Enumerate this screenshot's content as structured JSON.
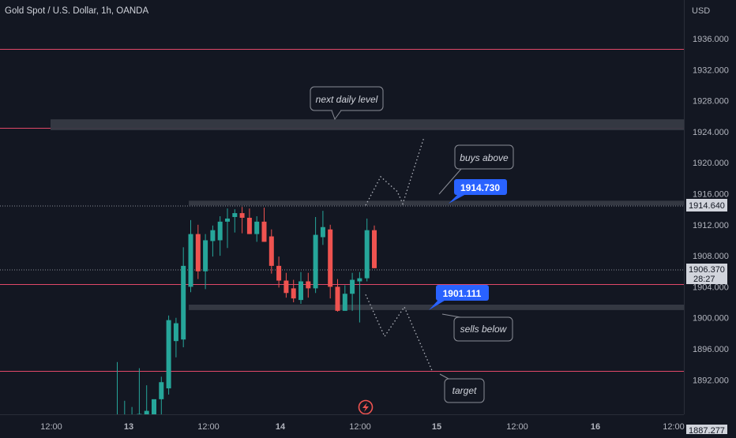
{
  "header": {
    "title": "Gold Spot / U.S. Dollar, 1h, OANDA"
  },
  "axis": {
    "currency": "USD",
    "y_ticks": [
      "1936.000",
      "1932.000",
      "1928.000",
      "1924.000",
      "1920.000",
      "1916.000",
      "1912.000",
      "1908.000",
      "1904.000",
      "1900.000",
      "1896.000",
      "1892.000"
    ],
    "x_ticks": [
      "12:00",
      "13",
      "12:00",
      "14",
      "12:00",
      "15",
      "12:00",
      "16",
      "12:00"
    ]
  },
  "price_labels": {
    "level_tag": "1914.640",
    "last_price": "1906.370",
    "countdown": "28:27",
    "bottom_price": "1887.277"
  },
  "annotations": {
    "next_daily_level": "next daily level",
    "buys_above": "buys above",
    "sells_below": "sells below",
    "target": "target",
    "buy_level_tag": "1914.730",
    "sell_level_tag": "1901.111"
  },
  "colors": {
    "background": "#131722",
    "bull": "#26a69a",
    "bear": "#ef5350",
    "level_line": "#e04868",
    "zone": "#363a45",
    "tag_blue": "#2962ff",
    "text": "#d1d4dc",
    "axis_text": "#b2b5be"
  },
  "icons": {
    "alert": "lightning-icon"
  },
  "chart_data": {
    "type": "candlestick",
    "title": "Gold Spot / U.S. Dollar, 1h, OANDA",
    "symbol_currency": "USD",
    "ylim": [
      1887.277,
      1939.6
    ],
    "x_tick_labels": [
      "12:00",
      "13",
      "12:00",
      "14",
      "12:00",
      "15",
      "12:00",
      "16",
      "12:00"
    ],
    "candles": [
      {
        "o": 1887.0,
        "h": 1894.3,
        "l": 1887.0,
        "c": 1887.5
      },
      {
        "o": 1887.0,
        "h": 1889.3,
        "l": 1887.0,
        "c": 1887.5
      },
      {
        "o": 1887.0,
        "h": 1888.5,
        "l": 1887.0,
        "c": 1887.5
      },
      {
        "o": 1887.0,
        "h": 1893.5,
        "l": 1887.0,
        "c": 1887.6
      },
      {
        "o": 1887.3,
        "h": 1891.3,
        "l": 1887.0,
        "c": 1888.0
      },
      {
        "o": 1887.3,
        "h": 1889.3,
        "l": 1887.0,
        "c": 1889.5
      },
      {
        "o": 1889.5,
        "h": 1892.4,
        "l": 1887.5,
        "c": 1891.7
      },
      {
        "o": 1890.9,
        "h": 1900.3,
        "l": 1890.1,
        "c": 1899.7
      },
      {
        "o": 1897.0,
        "h": 1900.0,
        "l": 1894.9,
        "c": 1899.3
      },
      {
        "o": 1897.2,
        "h": 1909.1,
        "l": 1896.2,
        "c": 1906.7
      },
      {
        "o": 1904.0,
        "h": 1912.6,
        "l": 1903.3,
        "c": 1910.8
      },
      {
        "o": 1910.8,
        "h": 1912.0,
        "l": 1905.0,
        "c": 1906.0
      },
      {
        "o": 1906.0,
        "h": 1910.8,
        "l": 1903.7,
        "c": 1910.0
      },
      {
        "o": 1909.9,
        "h": 1911.9,
        "l": 1907.9,
        "c": 1911.3
      },
      {
        "o": 1910.0,
        "h": 1913.1,
        "l": 1908.0,
        "c": 1912.4
      },
      {
        "o": 1912.4,
        "h": 1914.1,
        "l": 1909.0,
        "c": 1912.8
      },
      {
        "o": 1913.0,
        "h": 1914.0,
        "l": 1911.0,
        "c": 1913.5
      },
      {
        "o": 1913.5,
        "h": 1914.3,
        "l": 1910.9,
        "c": 1912.9
      },
      {
        "o": 1912.9,
        "h": 1914.1,
        "l": 1910.8,
        "c": 1910.8
      },
      {
        "o": 1910.8,
        "h": 1913.1,
        "l": 1909.8,
        "c": 1912.4
      },
      {
        "o": 1912.4,
        "h": 1914.2,
        "l": 1909.8,
        "c": 1909.8
      },
      {
        "o": 1910.5,
        "h": 1911.4,
        "l": 1905.7,
        "c": 1906.7
      },
      {
        "o": 1906.7,
        "h": 1907.9,
        "l": 1903.9,
        "c": 1904.8
      },
      {
        "o": 1904.8,
        "h": 1905.8,
        "l": 1902.6,
        "c": 1903.2
      },
      {
        "o": 1903.8,
        "h": 1904.9,
        "l": 1902.0,
        "c": 1902.5
      },
      {
        "o": 1902.3,
        "h": 1905.9,
        "l": 1901.8,
        "c": 1904.7
      },
      {
        "o": 1904.7,
        "h": 1905.8,
        "l": 1902.6,
        "c": 1903.8
      },
      {
        "o": 1903.8,
        "h": 1913.0,
        "l": 1903.2,
        "c": 1910.7
      },
      {
        "o": 1910.4,
        "h": 1913.8,
        "l": 1909.4,
        "c": 1911.7
      },
      {
        "o": 1911.4,
        "h": 1912.0,
        "l": 1902.5,
        "c": 1904.0
      },
      {
        "o": 1904.0,
        "h": 1905.0,
        "l": 1900.8,
        "c": 1900.9
      },
      {
        "o": 1900.9,
        "h": 1904.2,
        "l": 1901.0,
        "c": 1903.1
      },
      {
        "o": 1903.1,
        "h": 1905.8,
        "l": 1900.9,
        "c": 1904.9
      },
      {
        "o": 1904.7,
        "h": 1905.9,
        "l": 1899.4,
        "c": 1905.1
      },
      {
        "o": 1905.1,
        "h": 1912.8,
        "l": 1904.7,
        "c": 1911.3
      },
      {
        "o": 1911.3,
        "h": 1911.9,
        "l": 1906.4,
        "c": 1906.4
      }
    ],
    "horizontal_lines": [
      1934.7,
      1924.5,
      1904.3,
      1893.1
    ],
    "zones": [
      [
        1924.2,
        1925.6
      ],
      [
        1914.5,
        1915.1
      ],
      [
        1901.0,
        1901.7
      ]
    ],
    "projection_buy": [
      [
        1914.5,
        1918.2
      ],
      [
        1918.2,
        1916.3
      ],
      [
        1916.3,
        1914.7
      ],
      [
        1914.7,
        1923.3
      ]
    ],
    "projection_sell": [
      [
        1903.0,
        1897.6
      ],
      [
        1897.6,
        1901.4
      ],
      [
        1901.4,
        1893.2
      ]
    ]
  }
}
